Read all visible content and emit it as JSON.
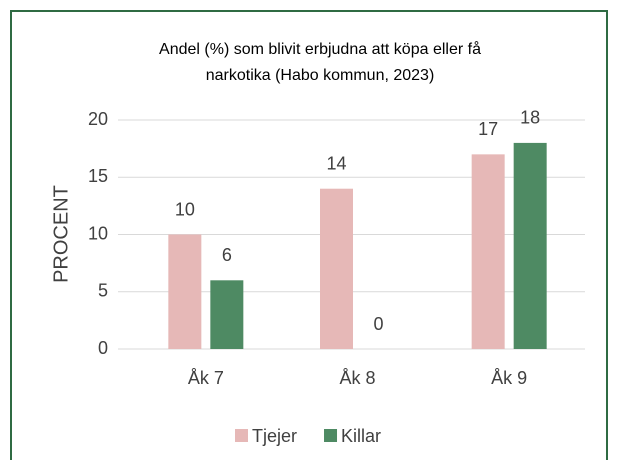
{
  "chart_data": {
    "type": "bar",
    "title": [
      "Andel (%) som blivit erbjudna att köpa eller få",
      "narkotika (Habo kommun, 2023)"
    ],
    "y_label": "PROCENT",
    "categories": [
      "Åk 7",
      "Åk 8",
      "Åk 9"
    ],
    "series": [
      {
        "name": "Tjejer",
        "color": "#e6b8b7",
        "values": [
          10,
          14,
          17
        ]
      },
      {
        "name": "Killar",
        "color": "#4e8a63",
        "values": [
          6,
          0,
          18
        ]
      }
    ],
    "ylim": [
      0,
      20
    ],
    "yticks": [
      0,
      5,
      10,
      15,
      20
    ],
    "grid": true,
    "legend": "bottom"
  }
}
